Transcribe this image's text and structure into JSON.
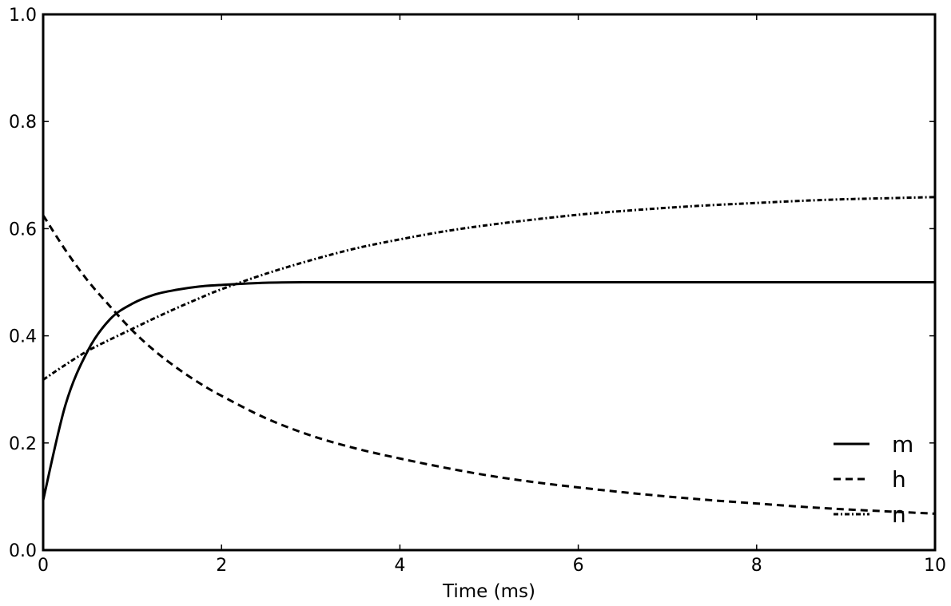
{
  "chart_data": {
    "type": "line",
    "title": "",
    "xlabel": "Time (ms)",
    "ylabel": "",
    "xlim": [
      0,
      10
    ],
    "ylim": [
      0,
      1
    ],
    "xticks": [
      0,
      2,
      4,
      6,
      8,
      10
    ],
    "yticks": [
      0.0,
      0.2,
      0.4,
      0.6,
      0.8,
      1.0
    ],
    "xtick_labels": [
      "0",
      "2",
      "4",
      "6",
      "8",
      "10"
    ],
    "ytick_labels": [
      "0.0",
      "0.2",
      "0.4",
      "0.6",
      "0.8",
      "1.0"
    ],
    "grid": false,
    "legend_position": "lower-right",
    "x": [
      0,
      0.25,
      0.5,
      0.75,
      1.0,
      1.25,
      1.5,
      1.75,
      2.0,
      2.5,
      3.0,
      3.5,
      4.0,
      4.5,
      5.0,
      5.5,
      6.0,
      6.5,
      7.0,
      7.5,
      8.0,
      8.5,
      9.0,
      9.5,
      10.0
    ],
    "series": [
      {
        "name": "m",
        "style": "solid",
        "color": "#000000",
        "values": [
          0.093,
          0.271,
          0.372,
          0.431,
          0.46,
          0.477,
          0.486,
          0.492,
          0.495,
          0.499,
          0.5,
          0.5,
          0.5,
          0.5,
          0.5,
          0.5,
          0.5,
          0.5,
          0.5,
          0.5,
          0.5,
          0.5,
          0.5,
          0.5,
          0.5
        ]
      },
      {
        "name": "h",
        "style": "dashed",
        "color": "#000000",
        "values": [
          0.625,
          0.56,
          0.503,
          0.455,
          0.41,
          0.372,
          0.34,
          0.312,
          0.288,
          0.246,
          0.214,
          0.19,
          0.171,
          0.154,
          0.139,
          0.127,
          0.117,
          0.108,
          0.1,
          0.093,
          0.087,
          0.081,
          0.076,
          0.072,
          0.068
        ]
      },
      {
        "name": "n",
        "style": "dashdot",
        "color": "#000000",
        "values": [
          0.318,
          0.346,
          0.372,
          0.393,
          0.413,
          0.433,
          0.452,
          0.47,
          0.487,
          0.516,
          0.541,
          0.563,
          0.58,
          0.595,
          0.607,
          0.617,
          0.626,
          0.633,
          0.639,
          0.644,
          0.648,
          0.652,
          0.655,
          0.657,
          0.659
        ]
      }
    ]
  }
}
